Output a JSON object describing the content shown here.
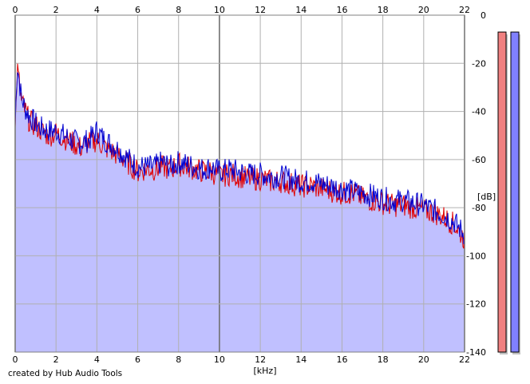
{
  "credit": "created by Hub Audio Tools",
  "chart_data": {
    "type": "area",
    "xlabel": "[kHz]",
    "ylabel": "[dB]",
    "xlim": [
      0,
      22
    ],
    "ylim": [
      -140,
      0
    ],
    "x_ticks": [
      "0",
      "2",
      "4",
      "6",
      "8",
      "10",
      "12",
      "14",
      "16",
      "18",
      "20",
      "22"
    ],
    "y_ticks": [
      "0",
      "-20",
      "-40",
      "-60",
      "-80",
      "-100",
      "-120",
      "-140"
    ],
    "grid": true,
    "colors": {
      "fill": "#c0c0ff",
      "red": "#e00000",
      "blue": "#0000d0",
      "meter_red": "#f08080",
      "meter_blue": "#8080ff",
      "grid": "#b0b0b0"
    },
    "series": [
      {
        "color": "red",
        "x": [
          0,
          0.1,
          0.2,
          0.3,
          0.5,
          0.7,
          1,
          1.3,
          1.6,
          2,
          2.4,
          2.8,
          3.2,
          3.6,
          4,
          4.4,
          4.8,
          5.2,
          5.6,
          6,
          6.4,
          6.8,
          7.2,
          7.6,
          8,
          8.4,
          8.8,
          9.2,
          9.6,
          10,
          10.5,
          11,
          11.5,
          12,
          12.5,
          13,
          13.5,
          14,
          14.5,
          15,
          15.5,
          16,
          16.5,
          17,
          17.5,
          18,
          18.5,
          19,
          19.5,
          20,
          20.5,
          21,
          21.5,
          22
        ],
        "y": [
          -48,
          -22,
          -28,
          -36,
          -40,
          -44,
          -46,
          -48,
          -50,
          -49,
          -51,
          -53,
          -55,
          -53,
          -52,
          -55,
          -57,
          -59,
          -62,
          -65,
          -64,
          -64,
          -63,
          -64,
          -62,
          -63,
          -64,
          -65,
          -65,
          -67,
          -66,
          -67,
          -68,
          -68,
          -69,
          -69,
          -70,
          -71,
          -71,
          -72,
          -73,
          -74,
          -74,
          -76,
          -77,
          -78,
          -79,
          -79,
          -80,
          -81,
          -82,
          -84,
          -87,
          -93
        ]
      },
      {
        "color": "blue",
        "x": [
          0,
          0.1,
          0.2,
          0.3,
          0.5,
          0.7,
          1,
          1.3,
          1.6,
          2,
          2.4,
          2.8,
          3.2,
          3.6,
          4,
          4.4,
          4.8,
          5.2,
          5.6,
          6,
          6.4,
          6.8,
          7.2,
          7.6,
          8,
          8.4,
          8.8,
          9.2,
          9.6,
          10,
          10.5,
          11,
          11.5,
          12,
          12.5,
          13,
          13.5,
          14,
          14.5,
          15,
          15.5,
          16,
          16.5,
          17,
          17.5,
          18,
          18.5,
          19,
          19.5,
          20,
          20.5,
          21,
          21.5,
          22
        ],
        "y": [
          -46,
          -20,
          -27,
          -34,
          -39,
          -42,
          -45,
          -47,
          -48,
          -48,
          -50,
          -52,
          -53,
          -52,
          -48,
          -52,
          -54,
          -57,
          -60,
          -63,
          -63,
          -63,
          -61,
          -63,
          -61,
          -62,
          -63,
          -64,
          -63,
          -65,
          -64,
          -65,
          -66,
          -66,
          -67,
          -67,
          -68,
          -69,
          -69,
          -70,
          -71,
          -72,
          -73,
          -74,
          -75,
          -76,
          -77,
          -77,
          -78,
          -79,
          -81,
          -83,
          -86,
          -91
        ]
      }
    ],
    "level_meters": [
      {
        "color": "red",
        "level_db": -7
      },
      {
        "color": "blue",
        "level_db": -7
      }
    ]
  }
}
